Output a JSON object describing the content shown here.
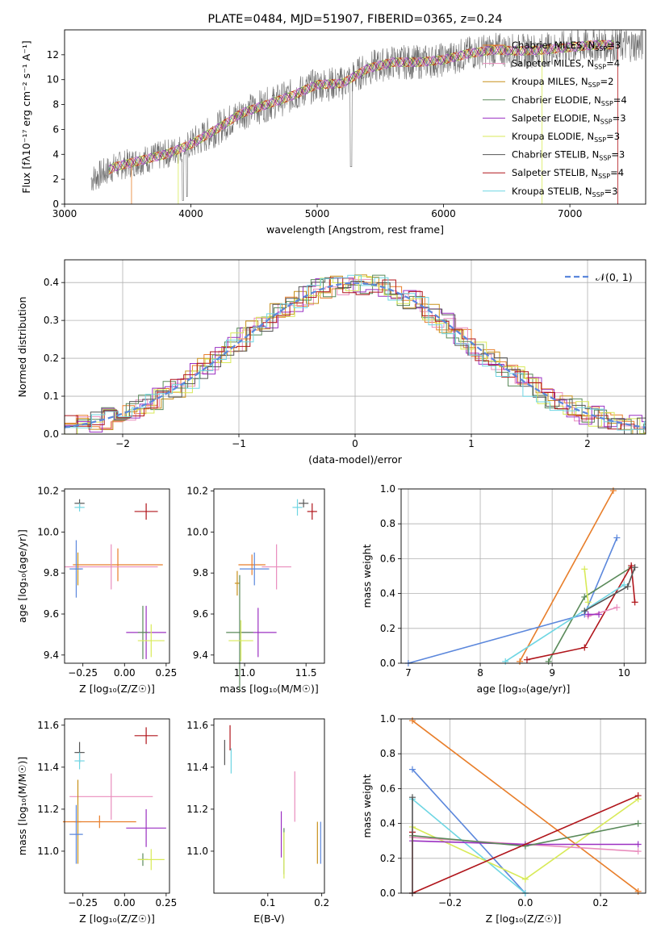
{
  "colors": {
    "Chabrier MILES": "#e87e2a",
    "Salpeter MILES": "#e98dbd",
    "Kroupa MILES": "#c8901a",
    "Chabrier ELODIE": "#5a8a5a",
    "Salpeter ELODIE": "#9b30c2",
    "Kroupa ELODIE": "#d8ea58",
    "Chabrier STELIB": "#555555",
    "Salpeter STELIB": "#b0151b",
    "Kroupa STELIB": "#6fd6e3",
    "extra_blue": "#5b87dc",
    "extra_green": "#8fdc6a",
    "gaussian": "#5b87dc"
  },
  "chart_data": [
    {
      "id": "spectrum",
      "type": "line",
      "title": "PLATE=0484, MJD=51907, FIBERID=0365, z=0.24",
      "xlabel": "wavelength [Angstrom, rest frame]",
      "ylabel": "Flux [fλ10⁻¹⁷ erg cm⁻² s⁻¹ A⁻¹]",
      "xlim": [
        3000,
        7600
      ],
      "ylim": [
        0,
        14
      ],
      "xticks": [
        "3000",
        "4000",
        "5000",
        "6000",
        "7000"
      ],
      "yticks": [
        "0",
        "2",
        "4",
        "6",
        "8",
        "10",
        "12"
      ],
      "x": [
        3210,
        3400,
        3600,
        3800,
        4000,
        4200,
        4400,
        4600,
        4800,
        5000,
        5200,
        5400,
        5600,
        5800,
        6000,
        6200,
        6400,
        6600,
        6800,
        7000,
        7200,
        7350
      ],
      "y": [
        2.0,
        3.0,
        3.5,
        4.0,
        4.8,
        6.0,
        7.3,
        8.0,
        8.7,
        9.6,
        9.7,
        10.9,
        11.4,
        11.4,
        11.6,
        12.1,
        12.4,
        12.3,
        12.4,
        12.6,
        12.8,
        12.8
      ],
      "legend": [
        {
          "label": "Chabrier MILES, N_SSP=3",
          "color_key": "Chabrier MILES"
        },
        {
          "label": "Salpeter MILES, N_SSP=4",
          "color_key": "Salpeter MILES"
        },
        {
          "label": "Kroupa MILES, N_SSP=2",
          "color_key": "Kroupa MILES"
        },
        {
          "label": "Chabrier ELODIE, N_SSP=4",
          "color_key": "Chabrier ELODIE"
        },
        {
          "label": "Salpeter ELODIE, N_SSP=3",
          "color_key": "Salpeter ELODIE"
        },
        {
          "label": "Kroupa ELODIE, N_SSP=3",
          "color_key": "Kroupa ELODIE"
        },
        {
          "label": "Chabrier STELIB, N_SSP=3",
          "color_key": "Chabrier STELIB"
        },
        {
          "label": "Salpeter STELIB, N_SSP=4",
          "color_key": "Salpeter STELIB"
        },
        {
          "label": "Kroupa STELIB, N_SSP=3",
          "color_key": "Kroupa STELIB"
        }
      ],
      "legend_placement": "upper-right"
    },
    {
      "id": "residuals",
      "type": "line",
      "xlabel": "(data-model)/error",
      "ylabel": "Normed distribution",
      "xlim": [
        -2.5,
        2.5
      ],
      "ylim": [
        0,
        0.46
      ],
      "xticks": [
        "−2",
        "−1",
        "0",
        "1",
        "2"
      ],
      "yticks": [
        "0.0",
        "0.1",
        "0.2",
        "0.3",
        "0.4"
      ],
      "grid": true,
      "legend": [
        {
          "label": "𝒩(0, 1)",
          "color_key": "gaussian"
        }
      ],
      "legend_placement": "upper-right"
    },
    {
      "id": "z_age",
      "type": "scatter",
      "xlabel": "Z [log₁₀(Z/Z☉)]",
      "ylabel": "age  [log₁₀(age/yr)]",
      "xlim": [
        -0.36,
        0.27
      ],
      "ylim": [
        9.36,
        10.21
      ],
      "xticks": [
        "−0.25",
        "0.00",
        "0.25"
      ],
      "yticks": [
        "9.4",
        "9.6",
        "9.8",
        "10.0",
        "10.2"
      ],
      "points": [
        {
          "color_key": "Chabrier STELIB",
          "x": -0.27,
          "xerr": 0.03,
          "y": 10.14,
          "yerr": 0.02
        },
        {
          "color_key": "Kroupa STELIB",
          "x": -0.27,
          "xerr": 0.03,
          "y": 10.12,
          "yerr": 0.02
        },
        {
          "color_key": "Salpeter STELIB",
          "x": 0.13,
          "xerr": 0.07,
          "y": 10.1,
          "yerr": 0.04
        },
        {
          "color_key": "Chabrier MILES",
          "x": -0.04,
          "xerr": 0.27,
          "y": 9.84,
          "yerr": 0.08
        },
        {
          "color_key": "Salpeter MILES",
          "x": -0.08,
          "xerr": 0.28,
          "y": 9.83,
          "yerr": 0.11
        },
        {
          "color_key": "Kroupa MILES",
          "x": -0.28,
          "xerr": 0.02,
          "y": 9.82,
          "yerr": 0.08
        },
        {
          "color_key": "extra_blue",
          "x": -0.29,
          "xerr": 0.04,
          "y": 9.82,
          "yerr": 0.14
        },
        {
          "color_key": "Salpeter ELODIE",
          "x": 0.13,
          "xerr": 0.12,
          "y": 9.51,
          "yerr": 0.13
        },
        {
          "color_key": "Chabrier ELODIE",
          "x": 0.11,
          "xerr": 0.03,
          "y": 9.51,
          "yerr": 0.13
        },
        {
          "color_key": "Kroupa ELODIE",
          "x": 0.16,
          "xerr": 0.08,
          "y": 9.47,
          "yerr": 0.08
        }
      ]
    },
    {
      "id": "mass_age",
      "type": "scatter",
      "xlabel": "mass [log₁₀(M/M☉)]",
      "ylabel": "",
      "xlim": [
        10.75,
        11.65
      ],
      "ylim": [
        9.36,
        10.21
      ],
      "xticks": [
        "11.0",
        "11.5"
      ],
      "yticks": [
        "9.4",
        "9.6",
        "9.8",
        "10.0",
        "10.2"
      ],
      "points": [
        {
          "color_key": "Chabrier STELIB",
          "x": 11.48,
          "xerr": 0.04,
          "y": 10.14,
          "yerr": 0.02
        },
        {
          "color_key": "Kroupa STELIB",
          "x": 11.43,
          "xerr": 0.04,
          "y": 10.12,
          "yerr": 0.04
        },
        {
          "color_key": "Salpeter STELIB",
          "x": 11.55,
          "xerr": 0.04,
          "y": 10.1,
          "yerr": 0.04
        },
        {
          "color_key": "Chabrier MILES",
          "x": 11.06,
          "xerr": 0.11,
          "y": 9.84,
          "yerr": 0.05
        },
        {
          "color_key": "Salpeter MILES",
          "x": 11.26,
          "xerr": 0.12,
          "y": 9.83,
          "yerr": 0.11
        },
        {
          "color_key": "extra_blue",
          "x": 11.08,
          "xerr": 0.12,
          "y": 9.82,
          "yerr": 0.08
        },
        {
          "color_key": "Kroupa MILES",
          "x": 10.94,
          "xerr": 0.02,
          "y": 9.75,
          "yerr": 0.06
        },
        {
          "color_key": "Salpeter ELODIE",
          "x": 11.11,
          "xerr": 0.15,
          "y": 9.51,
          "yerr": 0.12
        },
        {
          "color_key": "Chabrier ELODIE",
          "x": 10.96,
          "xerr": 0.11,
          "y": 9.51,
          "yerr": 0.28
        },
        {
          "color_key": "Kroupa ELODIE",
          "x": 10.97,
          "xerr": 0.1,
          "y": 9.47,
          "yerr": 0.1
        }
      ]
    },
    {
      "id": "age_weight",
      "type": "line",
      "xlabel": "age  [log₁₀(age/yr)]",
      "ylabel": "mass weight",
      "xlim": [
        6.9,
        10.3
      ],
      "ylim": [
        0,
        1
      ],
      "xticks": [
        "7",
        "8",
        "9",
        "10"
      ],
      "yticks": [
        "0.0",
        "0.2",
        "0.4",
        "0.6",
        "0.8",
        "1.0"
      ],
      "grid": true,
      "series": [
        {
          "color_key": "Chabrier MILES",
          "x": [
            8.55,
            9.85
          ],
          "y": [
            0.01,
            0.99
          ]
        },
        {
          "color_key": "extra_blue",
          "x": [
            7.0,
            9.45,
            9.9
          ],
          "y": [
            0.0,
            0.28,
            0.72
          ]
        },
        {
          "color_key": "Chabrier ELODIE",
          "x": [
            8.95,
            9.45,
            10.1
          ],
          "y": [
            0.01,
            0.38,
            0.55
          ]
        },
        {
          "color_key": "Salpeter STELIB",
          "x": [
            8.65,
            9.45,
            10.1,
            10.15
          ],
          "y": [
            0.02,
            0.09,
            0.56,
            0.35
          ]
        },
        {
          "color_key": "Kroupa ELODIE",
          "x": [
            9.45,
            9.5
          ],
          "y": [
            0.54,
            0.35
          ]
        },
        {
          "color_key": "Kroupa STELIB",
          "x": [
            8.35,
            10.0
          ],
          "y": [
            0.01,
            0.45
          ]
        },
        {
          "color_key": "Salpeter MILES",
          "x": [
            9.5,
            9.9
          ],
          "y": [
            0.27,
            0.32
          ]
        },
        {
          "color_key": "Chabrier STELIB",
          "x": [
            9.45,
            10.05,
            10.15
          ],
          "y": [
            0.3,
            0.44,
            0.55
          ]
        },
        {
          "color_key": "Salpeter ELODIE",
          "x": [
            9.5,
            9.65
          ],
          "y": [
            0.28,
            0.28
          ]
        }
      ]
    },
    {
      "id": "z_mass",
      "type": "scatter",
      "xlabel": "Z [log₁₀(Z/Z☉)]",
      "ylabel": "mass [log₁₀(M/M☉)]",
      "xlim": [
        -0.36,
        0.27
      ],
      "ylim": [
        10.8,
        11.63
      ],
      "xticks": [
        "−0.25",
        "0.00",
        "0.25"
      ],
      "yticks": [
        "11.0",
        "11.2",
        "11.4",
        "11.6"
      ],
      "points": [
        {
          "color_key": "Chabrier STELIB",
          "x": -0.27,
          "xerr": 0.03,
          "y": 11.47,
          "yerr": 0.05
        },
        {
          "color_key": "Kroupa STELIB",
          "x": -0.27,
          "xerr": 0.03,
          "y": 11.43,
          "yerr": 0.04
        },
        {
          "color_key": "Salpeter STELIB",
          "x": 0.13,
          "xerr": 0.07,
          "y": 11.55,
          "yerr": 0.04
        },
        {
          "color_key": "Salpeter MILES",
          "x": -0.08,
          "xerr": 0.25,
          "y": 11.26,
          "yerr": 0.11
        },
        {
          "color_key": "Kroupa MILES",
          "x": -0.28,
          "xerr": 0.02,
          "y": 11.14,
          "yerr": 0.2
        },
        {
          "color_key": "Chabrier MILES",
          "x": -0.15,
          "xerr": 0.22,
          "y": 11.14,
          "yerr": 0.03
        },
        {
          "color_key": "Salpeter ELODIE",
          "x": 0.13,
          "xerr": 0.12,
          "y": 11.11,
          "yerr": 0.09
        },
        {
          "color_key": "extra_blue",
          "x": -0.29,
          "xerr": 0.04,
          "y": 11.08,
          "yerr": 0.14
        },
        {
          "color_key": "Chabrier ELODIE",
          "x": 0.11,
          "xerr": 0.03,
          "y": 10.96,
          "yerr": 0.03
        },
        {
          "color_key": "Kroupa ELODIE",
          "x": 0.16,
          "xerr": 0.08,
          "y": 10.96,
          "yerr": 0.05
        }
      ]
    },
    {
      "id": "ebv_mass",
      "type": "scatter",
      "xlabel": "E(B-V)",
      "ylabel": "",
      "xlim": [
        0.0,
        0.205
      ],
      "ylim": [
        10.8,
        11.63
      ],
      "xticks": [
        "0.1",
        "0.2"
      ],
      "yticks": [
        "11.0",
        "11.2",
        "11.4",
        "11.6"
      ],
      "points": [
        {
          "color_key": "Chabrier STELIB",
          "x": 0.02,
          "yerr": 0.06,
          "y": 11.47
        },
        {
          "color_key": "Kroupa STELIB",
          "x": 0.032,
          "yerr": 0.06,
          "y": 11.43
        },
        {
          "color_key": "Salpeter STELIB",
          "x": 0.03,
          "yerr": 0.06,
          "y": 11.54
        },
        {
          "color_key": "Salpeter MILES",
          "x": 0.15,
          "yerr": 0.12,
          "y": 11.26
        },
        {
          "color_key": "Salpeter ELODIE",
          "x": 0.125,
          "yerr": 0.11,
          "y": 11.08
        },
        {
          "color_key": "Chabrier ELODIE",
          "x": 0.13,
          "yerr": 0.11,
          "y": 11.0
        },
        {
          "color_key": "Kroupa ELODIE",
          "x": 0.13,
          "yerr": 0.11,
          "y": 10.98
        },
        {
          "color_key": "Kroupa MILES",
          "x": 0.192,
          "yerr": 0.1,
          "y": 11.04
        },
        {
          "color_key": "extra_blue",
          "x": 0.198,
          "yerr": 0.1,
          "y": 11.04
        }
      ]
    },
    {
      "id": "z_weight",
      "type": "line",
      "xlabel": "Z [log₁₀(Z/Z☉)]",
      "ylabel": "mass weight",
      "xlim": [
        -0.33,
        0.32
      ],
      "ylim": [
        0,
        1
      ],
      "xticks": [
        "−0.2",
        "0.0",
        "0.2"
      ],
      "yticks": [
        "0.0",
        "0.2",
        "0.4",
        "0.6",
        "0.8",
        "1.0"
      ],
      "grid": true,
      "series": [
        {
          "color_key": "Chabrier MILES",
          "x": [
            -0.3,
            0.3
          ],
          "y": [
            0.99,
            0.01
          ]
        },
        {
          "color_key": "extra_blue",
          "x": [
            -0.3,
            0.0
          ],
          "y": [
            0.71,
            0.0
          ]
        },
        {
          "color_key": "Kroupa STELIB",
          "x": [
            -0.3,
            0.0
          ],
          "y": [
            0.54,
            0.0
          ]
        },
        {
          "color_key": "Kroupa ELODIE",
          "x": [
            -0.3,
            0.0,
            0.3
          ],
          "y": [
            0.38,
            0.08,
            0.54
          ]
        },
        {
          "color_key": "Salpeter MILES",
          "x": [
            -0.3,
            0.3
          ],
          "y": [
            0.32,
            0.24
          ]
        },
        {
          "color_key": "Salpeter ELODIE",
          "x": [
            -0.3,
            0.0,
            0.3
          ],
          "y": [
            0.3,
            0.28,
            0.28
          ]
        },
        {
          "color_key": "Chabrier ELODIE",
          "x": [
            -0.3,
            0.0,
            0.3
          ],
          "y": [
            0.33,
            0.27,
            0.4
          ]
        },
        {
          "color_key": "Salpeter STELIB",
          "x": [
            -0.3,
            -0.3,
            0.3
          ],
          "y": [
            0.35,
            0.0,
            0.56
          ]
        },
        {
          "color_key": "Chabrier STELIB",
          "x": [
            -0.3,
            -0.3
          ],
          "y": [
            0.55,
            0.0
          ]
        }
      ]
    }
  ]
}
